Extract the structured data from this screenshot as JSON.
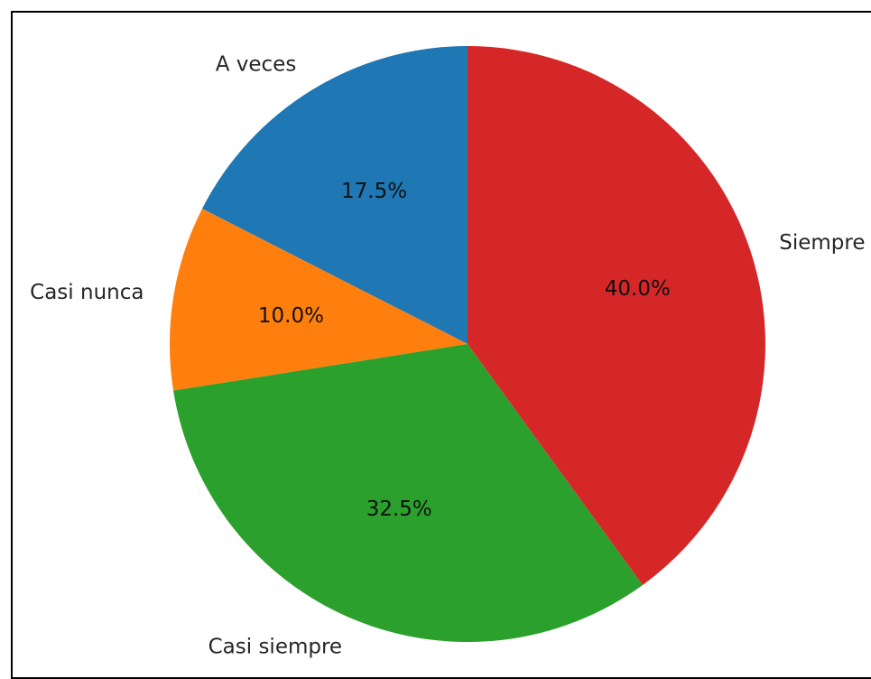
{
  "chart_data": {
    "type": "pie",
    "start_angle_deg": 90,
    "direction": "counterclockwise",
    "slices": [
      {
        "label": "A veces",
        "value": 17.5,
        "pct_label": "17.5%",
        "color": "#1f77b4"
      },
      {
        "label": "Casi nunca",
        "value": 10.0,
        "pct_label": "10.0%",
        "color": "#ff7f0e"
      },
      {
        "label": "Casi siempre",
        "value": 32.5,
        "pct_label": "32.5%",
        "color": "#2ca02c"
      },
      {
        "label": "Siempre",
        "value": 40.0,
        "pct_label": "40.0%",
        "color": "#d62728"
      }
    ]
  }
}
